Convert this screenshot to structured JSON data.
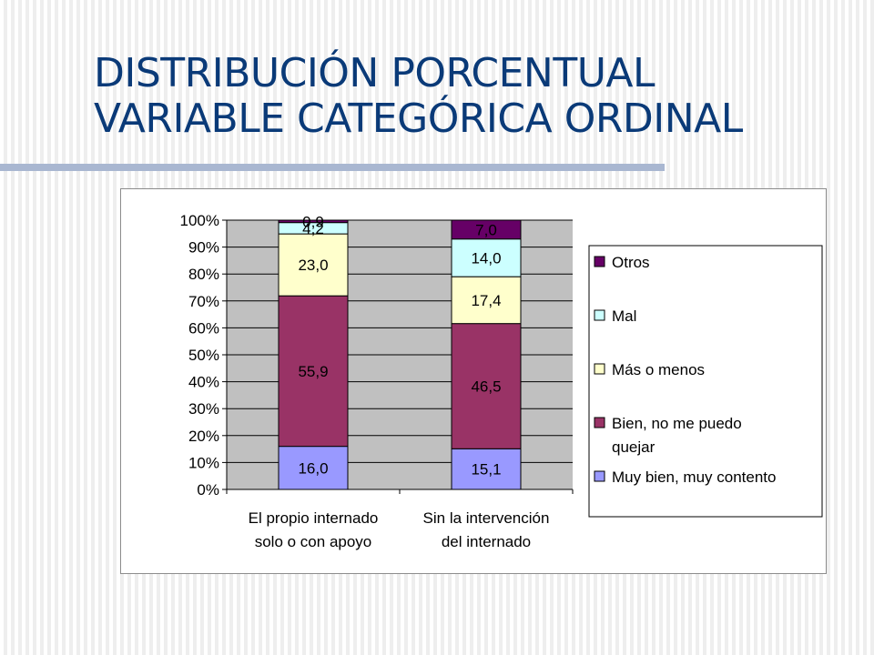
{
  "slide": {
    "title_line1": "DISTRIBUCIÓN PORCENTUAL",
    "title_line2": "VARIABLE CATEGÓRICA ORDINAL"
  },
  "colors": {
    "title": "#0a3a78",
    "plot_area": "#c0c0c0",
    "rule": "#a9b7d1"
  },
  "chart_data": {
    "type": "bar",
    "stacked": true,
    "percent_stacked": true,
    "title": "",
    "xlabel": "",
    "ylabel": "",
    "ylim": [
      0,
      100
    ],
    "y_ticks": [
      "0%",
      "10%",
      "20%",
      "30%",
      "40%",
      "50%",
      "60%",
      "70%",
      "80%",
      "90%",
      "100%"
    ],
    "grid": true,
    "legend_position": "right",
    "categories": [
      [
        "El propio internado",
        "solo o con apoyo"
      ],
      [
        "Sin la intervención",
        "del internado"
      ]
    ],
    "series": [
      {
        "name": "Muy bien, muy contento",
        "legend_lines": [
          "Muy bien, muy contento"
        ],
        "color": "#9999ff",
        "values": [
          16.0,
          15.1
        ],
        "labels": [
          "16,0",
          "15,1"
        ]
      },
      {
        "name": "Bien, no me puedo quejar",
        "legend_lines": [
          "Bien, no me puedo",
          "quejar"
        ],
        "color": "#993366",
        "values": [
          55.9,
          46.5
        ],
        "labels": [
          "55,9",
          "46,5"
        ]
      },
      {
        "name": "Más o menos",
        "legend_lines": [
          "Más o menos"
        ],
        "color": "#ffffcc",
        "values": [
          23.0,
          17.4
        ],
        "labels": [
          "23,0",
          "17,4"
        ]
      },
      {
        "name": "Mal",
        "legend_lines": [
          "Mal"
        ],
        "color": "#ccffff",
        "values": [
          4.2,
          14.0
        ],
        "labels": [
          "4,2",
          "14,0"
        ]
      },
      {
        "name": "Otros",
        "legend_lines": [
          "Otros"
        ],
        "color": "#660066",
        "values": [
          0.9,
          7.0
        ],
        "labels": [
          "0,9",
          "7,0"
        ]
      }
    ]
  }
}
